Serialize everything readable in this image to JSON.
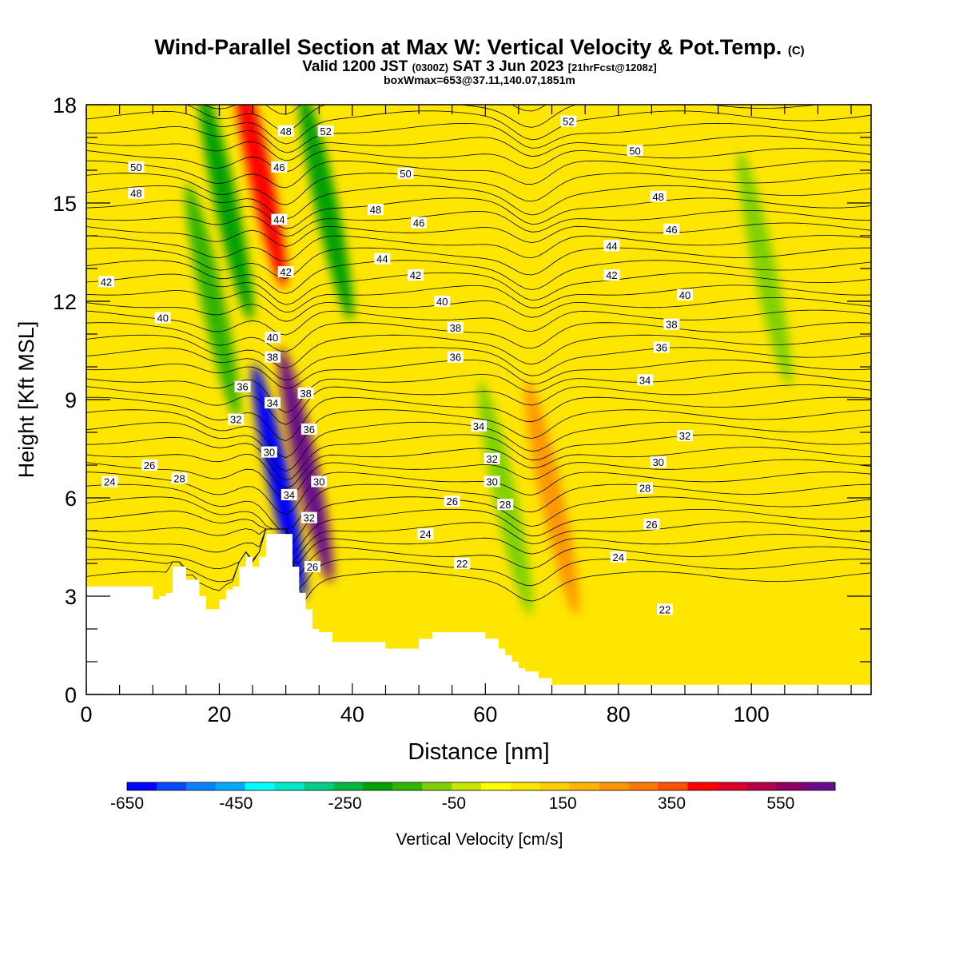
{
  "title": {
    "main": "Wind-Parallel Section at Max W: Vertical Velocity & Pot.Temp.",
    "copyright": "(C)",
    "valid_prefix": "Valid 1200 JST",
    "valid_utc": "(0300Z)",
    "valid_date": "SAT 3 Jun 2023",
    "forecast": "[21hrFcst@1208z]",
    "box": "boxWmax=653@37.11,140.07,1851m"
  },
  "colors": {
    "levels": [
      "#0000ff",
      "#0a46ff",
      "#0a82ff",
      "#00aaff",
      "#00ffff",
      "#00e8c8",
      "#00cc88",
      "#00b840",
      "#00a000",
      "#33b400",
      "#80d000",
      "#c8e600",
      "#ffff00",
      "#ffe600",
      "#ffcc00",
      "#ffb400",
      "#ff9600",
      "#ff7800",
      "#ff5000",
      "#ff0000",
      "#dc0028",
      "#b40046",
      "#8c0064",
      "#6a0a8c"
    ],
    "terrain": "#ffffff",
    "contour": "#000000"
  },
  "chart_data": {
    "type": "heatmap",
    "xlabel": "Distance [nm]",
    "ylabel": "Height [Kft MSL]",
    "xlim": [
      0,
      118
    ],
    "ylim": [
      0,
      18
    ],
    "xticks": [
      0,
      20,
      40,
      60,
      80,
      100
    ],
    "yticks": [
      0,
      3,
      6,
      9,
      12,
      15,
      18
    ],
    "grid": false,
    "colorbar": {
      "label": "Vertical Velocity [cm/s]",
      "range": [
        -650,
        650
      ],
      "step": 50,
      "tick_labels": [
        -650,
        -450,
        -250,
        -50,
        150,
        350,
        550
      ]
    },
    "terrain_profile": {
      "x": [
        0,
        5,
        8,
        10,
        11,
        12,
        13,
        14,
        15,
        16,
        17,
        18,
        19,
        20,
        21,
        22,
        23,
        24,
        25,
        26,
        27,
        28,
        29,
        30,
        31,
        32,
        33,
        34,
        35,
        37,
        42,
        45,
        48,
        50,
        52,
        55,
        58,
        60,
        62,
        63,
        64,
        65,
        66,
        68,
        70,
        75,
        80,
        90,
        100,
        110,
        118
      ],
      "height_kft": [
        3.3,
        3.3,
        3.3,
        2.9,
        3.0,
        3.1,
        3.9,
        3.9,
        3.5,
        3.5,
        3.0,
        2.6,
        2.6,
        2.9,
        3.2,
        3.3,
        3.9,
        4.2,
        3.9,
        4.2,
        4.9,
        4.9,
        4.9,
        4.9,
        3.9,
        3.1,
        2.6,
        2.0,
        1.9,
        1.6,
        1.6,
        1.4,
        1.4,
        1.7,
        1.9,
        1.9,
        1.9,
        1.7,
        1.4,
        1.2,
        1.0,
        0.8,
        0.7,
        0.5,
        0.3,
        0.3,
        0.3,
        0.3,
        0.3,
        0.3,
        0.3
      ]
    },
    "vertical_velocity_features": [
      {
        "x": 19,
        "y": 12,
        "w_cms": -200
      },
      {
        "x": 21,
        "y": 15,
        "w_cms": -250
      },
      {
        "x": 26,
        "y": 16,
        "w_cms": 300
      },
      {
        "x": 29,
        "y": 6.5,
        "w_cms": -650
      },
      {
        "x": 33,
        "y": 7,
        "w_cms": 653
      },
      {
        "x": 36,
        "y": 15,
        "w_cms": -250
      },
      {
        "x": 63,
        "y": 6,
        "w_cms": -150
      },
      {
        "x": 70,
        "y": 6,
        "w_cms": 150
      },
      {
        "x": 102,
        "y": 13,
        "w_cms": -150
      }
    ],
    "theta_contour_labels": [
      {
        "text": "52",
        "x": 72.5,
        "y": 17.5
      },
      {
        "text": "52",
        "x": 36,
        "y": 17.2
      },
      {
        "text": "48",
        "x": 30,
        "y": 17.2
      },
      {
        "text": "50",
        "x": 7.5,
        "y": 16.1
      },
      {
        "text": "50",
        "x": 48,
        "y": 15.9
      },
      {
        "text": "50",
        "x": 82.5,
        "y": 16.6
      },
      {
        "text": "48",
        "x": 7.5,
        "y": 15.3
      },
      {
        "text": "46",
        "x": 29,
        "y": 16.1
      },
      {
        "text": "48",
        "x": 43.5,
        "y": 14.8
      },
      {
        "text": "48",
        "x": 86,
        "y": 15.2
      },
      {
        "text": "44",
        "x": 29,
        "y": 14.5
      },
      {
        "text": "46",
        "x": 50,
        "y": 14.4
      },
      {
        "text": "46",
        "x": 88,
        "y": 14.2
      },
      {
        "text": "44",
        "x": 44.5,
        "y": 13.3
      },
      {
        "text": "44",
        "x": 79,
        "y": 13.7
      },
      {
        "text": "42",
        "x": 3,
        "y": 12.6
      },
      {
        "text": "42",
        "x": 30,
        "y": 12.9
      },
      {
        "text": "42",
        "x": 49.5,
        "y": 12.8
      },
      {
        "text": "42",
        "x": 79,
        "y": 12.8
      },
      {
        "text": "40",
        "x": 11.5,
        "y": 11.5
      },
      {
        "text": "40",
        "x": 53.5,
        "y": 12.0
      },
      {
        "text": "40",
        "x": 90,
        "y": 12.2
      },
      {
        "text": "38",
        "x": 55.5,
        "y": 11.2
      },
      {
        "text": "38",
        "x": 88,
        "y": 11.3
      },
      {
        "text": "40",
        "x": 28,
        "y": 10.9
      },
      {
        "text": "38",
        "x": 28,
        "y": 10.3
      },
      {
        "text": "36",
        "x": 55.5,
        "y": 10.3
      },
      {
        "text": "36",
        "x": 86.5,
        "y": 10.6
      },
      {
        "text": "36",
        "x": 23.5,
        "y": 9.4
      },
      {
        "text": "38",
        "x": 33,
        "y": 9.2
      },
      {
        "text": "34",
        "x": 28,
        "y": 8.9
      },
      {
        "text": "34",
        "x": 84,
        "y": 9.6
      },
      {
        "text": "32",
        "x": 22.5,
        "y": 8.4
      },
      {
        "text": "36",
        "x": 33.5,
        "y": 8.1
      },
      {
        "text": "34",
        "x": 59,
        "y": 8.2
      },
      {
        "text": "32",
        "x": 90,
        "y": 7.9
      },
      {
        "text": "30",
        "x": 27.5,
        "y": 7.4
      },
      {
        "text": "32",
        "x": 61,
        "y": 7.2
      },
      {
        "text": "30",
        "x": 86,
        "y": 7.1
      },
      {
        "text": "26",
        "x": 9.5,
        "y": 7.0
      },
      {
        "text": "28",
        "x": 14,
        "y": 6.6
      },
      {
        "text": "24",
        "x": 3.5,
        "y": 6.5
      },
      {
        "text": "30",
        "x": 35,
        "y": 6.5
      },
      {
        "text": "30",
        "x": 61,
        "y": 6.5
      },
      {
        "text": "28",
        "x": 84,
        "y": 6.3
      },
      {
        "text": "34",
        "x": 30.5,
        "y": 6.1
      },
      {
        "text": "26",
        "x": 55,
        "y": 5.9
      },
      {
        "text": "28",
        "x": 63,
        "y": 5.8
      },
      {
        "text": "32",
        "x": 33.5,
        "y": 5.4
      },
      {
        "text": "26",
        "x": 85,
        "y": 5.2
      },
      {
        "text": "24",
        "x": 51,
        "y": 4.9
      },
      {
        "text": "24",
        "x": 80,
        "y": 4.2
      },
      {
        "text": "22",
        "x": 56.5,
        "y": 4.0
      },
      {
        "text": "26",
        "x": 34,
        "y": 3.9
      },
      {
        "text": "22",
        "x": 87,
        "y": 2.6
      }
    ]
  }
}
